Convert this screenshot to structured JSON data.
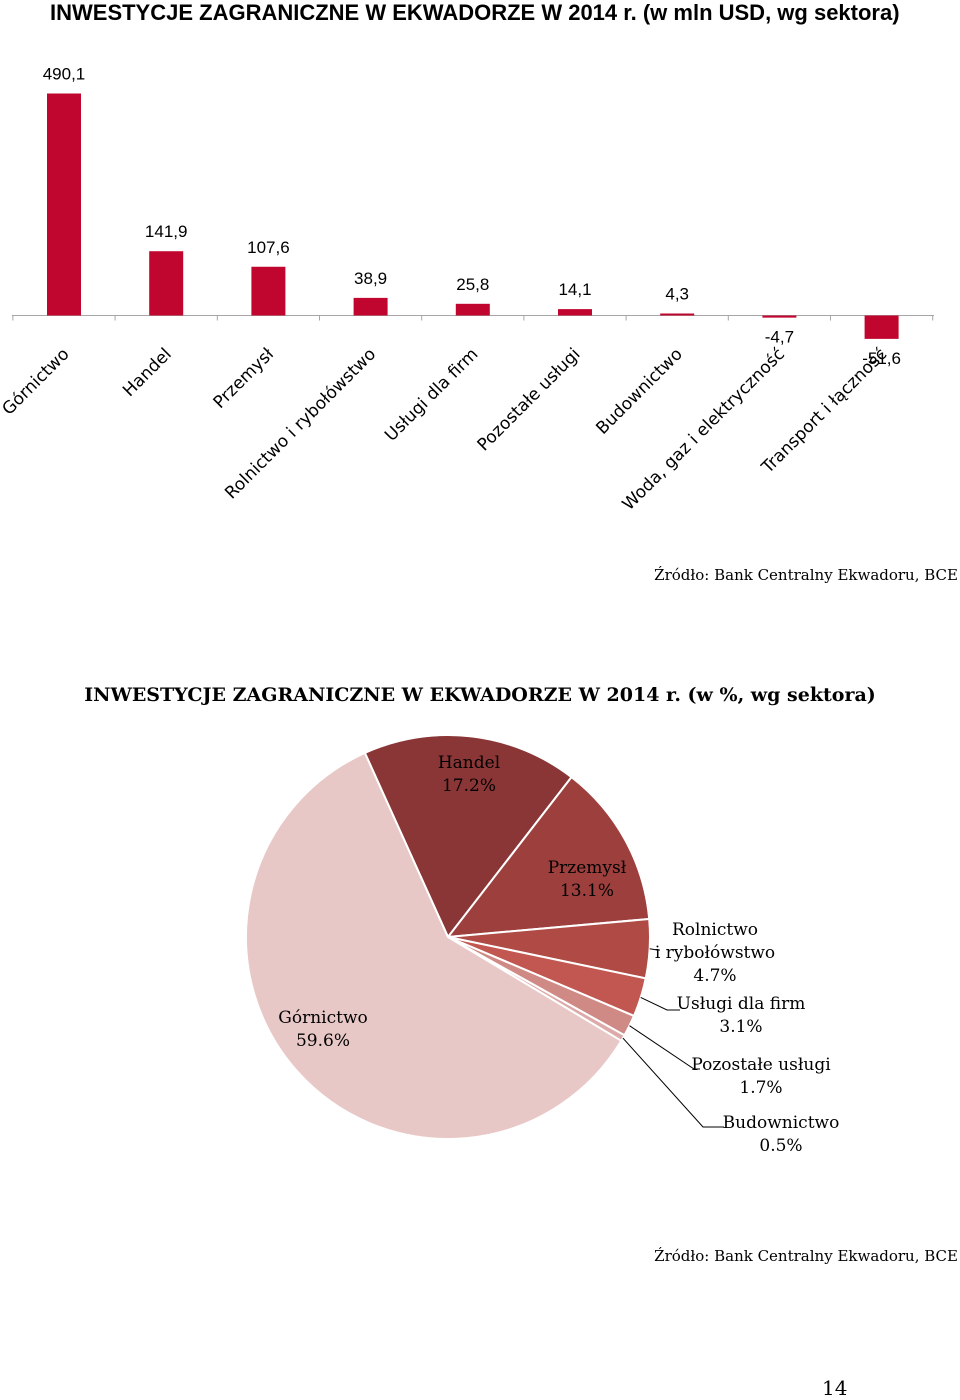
{
  "bar_title": "INWESTYCJE ZAGRANICZNE W EKWADORZE W 2014 r. (w mln USD, wg sektora)",
  "bar_source": "Źródło: Bank Centralny Ekwadoru, BCE",
  "pie_title": "INWESTYCJE ZAGRANICZNE W EKWADORZE W 2014 r. (w %, wg sektora)",
  "pie_source": "Źródło: Bank Centralny Ekwadoru, BCE",
  "page_number": "14",
  "colors": {
    "bar": "#c0062e",
    "pie": [
      "#8a3636",
      "#9c3f3d",
      "#b04a45",
      "#c25650",
      "#cf8a86",
      "#dcaaa8",
      "#e8c8c6"
    ]
  },
  "chart_data": [
    {
      "type": "bar",
      "title": "INWESTYCJE ZAGRANICZNE W EKWADORZE W 2014 r. (w mln USD, wg sektora)",
      "categories": [
        "Górnictwo",
        "Handel",
        "Przemysł",
        "Rolnictwo i rybołówstwo",
        "Usługi dla firm",
        "Pozostałe usługi",
        "Budownictwo",
        "Woda, gaz i elektryczność",
        "Transport i łączność"
      ],
      "values": [
        490.1,
        141.9,
        107.6,
        38.9,
        25.8,
        14.1,
        4.3,
        -4.7,
        -51.6
      ],
      "value_labels": [
        "490,1",
        "141,9",
        "107,6",
        "38,9",
        "25,8",
        "14,1",
        "4,3",
        "-4,7",
        "-51,6"
      ],
      "xlabel": "",
      "ylabel": "",
      "ylim": [
        -60,
        500
      ],
      "grid": false
    },
    {
      "type": "pie",
      "title": "INWESTYCJE ZAGRANICZNE W EKWADORZE W 2014 r. (w %, wg sektora)",
      "slices": [
        {
          "name": "Handel",
          "name_lines": [
            "Handel"
          ],
          "value": 17.2,
          "label": "17.2%"
        },
        {
          "name": "Przemysł",
          "name_lines": [
            "Przemysł"
          ],
          "value": 13.1,
          "label": "13.1%"
        },
        {
          "name": "Rolnictwo i rybołówstwo",
          "name_lines": [
            "Rolnictwo",
            "i rybołówstwo"
          ],
          "value": 4.7,
          "label": "4.7%"
        },
        {
          "name": "Usługi dla firm",
          "name_lines": [
            "Usługi dla firm"
          ],
          "value": 3.1,
          "label": "3.1%"
        },
        {
          "name": "Pozostałe usługi",
          "name_lines": [
            "Pozostałe usługi"
          ],
          "value": 1.7,
          "label": "1.7%"
        },
        {
          "name": "Budownictwo",
          "name_lines": [
            "Budownictwo"
          ],
          "value": 0.5,
          "label": "0.5%"
        },
        {
          "name": "Górnictwo",
          "name_lines": [
            "Górnictwo"
          ],
          "value": 59.6,
          "label": "59.6%"
        }
      ]
    }
  ]
}
